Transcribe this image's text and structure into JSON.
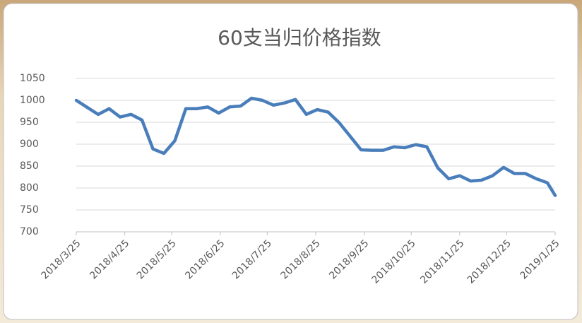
{
  "chart_data": {
    "type": "line",
    "title": "60支当归价格指数",
    "x": [
      "2018/3/25",
      "2018/4/1",
      "2018/4/8",
      "2018/4/15",
      "2018/4/22",
      "2018/4/29",
      "2018/5/6",
      "2018/5/13",
      "2018/5/20",
      "2018/5/27",
      "2018/6/3",
      "2018/6/10",
      "2018/6/17",
      "2018/6/24",
      "2018/7/1",
      "2018/7/8",
      "2018/7/15",
      "2018/7/22",
      "2018/7/29",
      "2018/8/5",
      "2018/8/12",
      "2018/8/19",
      "2018/8/26",
      "2018/9/2",
      "2018/9/9",
      "2018/9/16",
      "2018/9/23",
      "2018/9/30",
      "2018/10/7",
      "2018/10/14",
      "2018/10/21",
      "2018/10/28",
      "2018/11/4",
      "2018/11/11",
      "2018/11/18",
      "2018/11/25",
      "2018/12/2",
      "2018/12/9",
      "2018/12/16",
      "2018/12/23",
      "2018/12/30",
      "2019/1/6",
      "2019/1/13",
      "2019/1/20",
      "2019/1/25"
    ],
    "series": [
      {
        "name": "60支当归价格指数",
        "color": "#4a7ebb",
        "values": [
          1000,
          984,
          968,
          981,
          962,
          968,
          955,
          889,
          879,
          908,
          981,
          981,
          985,
          971,
          985,
          987,
          1005,
          1000,
          989,
          994,
          1002,
          968,
          979,
          973,
          949,
          918,
          887,
          886,
          886,
          894,
          892,
          899,
          894,
          846,
          821,
          828,
          816,
          818,
          828,
          847,
          833,
          833,
          821,
          812,
          783
        ]
      }
    ],
    "xlim": [
      "2018/3/25",
      "2019/1/25"
    ],
    "xticks": [
      "2018/3/25",
      "2018/4/25",
      "2018/5/25",
      "2018/6/25",
      "2018/7/25",
      "2018/8/25",
      "2018/9/25",
      "2018/10/25",
      "2018/11/25",
      "2018/12/25",
      "2019/1/25"
    ],
    "ylim": [
      700,
      1050
    ],
    "yticks": [
      700,
      750,
      800,
      850,
      900,
      950,
      1000,
      1050
    ],
    "grid": true
  }
}
